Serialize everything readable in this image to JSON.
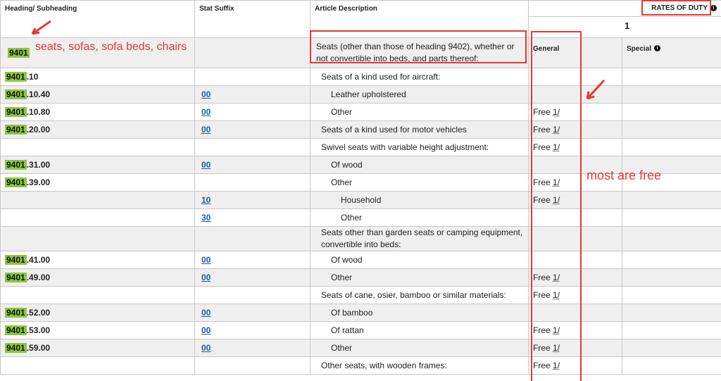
{
  "header": {
    "heading": "Heading/ Subheading",
    "stat_suffix": "Stat Suffix",
    "description": "Article Description",
    "rates_title": "RATES OF DUTY",
    "column": "1",
    "general": "General",
    "special": "Special"
  },
  "annotations": {
    "heading_note": "seats, sofas, sofa beds, chairs",
    "general_note": "most are free"
  },
  "rows": [
    {
      "code": "9401",
      "description": "Seats (other than those of heading 9402), whether or not convertible into beds, and parts thereof:"
    },
    {
      "code": "9401",
      "rest": ".10",
      "description": "Seats of a kind used for aircraft:"
    },
    {
      "code": "9401",
      "rest": ".10.40",
      "suffix": "00",
      "description": "Leather upholstered"
    },
    {
      "code": "9401",
      "rest": ".10.80",
      "suffix": "00",
      "description": "Other",
      "general": "Free",
      "footnote": "1/"
    },
    {
      "code": "9401",
      "rest": ".20.00",
      "suffix": "00",
      "description": "Seats of a kind used for motor vehicles",
      "general": "Free",
      "footnote": "1/"
    },
    {
      "description": "Swivel seats with variable height adjustment:",
      "general": "Free",
      "footnote": "1/"
    },
    {
      "code": "9401",
      "rest": ".31.00",
      "suffix": "00",
      "description": "Of wood"
    },
    {
      "code": "9401",
      "rest": ".39.00",
      "description": "Other",
      "general": "Free",
      "footnote": "1/"
    },
    {
      "suffix": "10",
      "description": "Household",
      "general": "Free",
      "footnote": "1/"
    },
    {
      "suffix": "30",
      "description": "Other"
    },
    {
      "description": "Seats other than garden seats or camping equipment, convertible into beds:"
    },
    {
      "code": "9401",
      "rest": ".41.00",
      "suffix": "00",
      "description": "Of wood"
    },
    {
      "code": "9401",
      "rest": ".49.00",
      "suffix": "00",
      "description": "Other",
      "general": "Free",
      "footnote": "1/"
    },
    {
      "description": "Seats of cane, osier, bamboo or similar materials:",
      "general": "Free",
      "footnote": "1/"
    },
    {
      "code": "9401",
      "rest": ".52.00",
      "suffix": "00",
      "description": "Of bamboo"
    },
    {
      "code": "9401",
      "rest": ".53.00",
      "suffix": "00",
      "description": "Of rattan",
      "general": "Free",
      "footnote": "1/"
    },
    {
      "code": "9401",
      "rest": ".59.00",
      "suffix": "00",
      "description": "Other",
      "general": "Free",
      "footnote": "1/"
    },
    {
      "description": "Other seats, with wooden frames:",
      "general": "Free",
      "footnote": "1/"
    }
  ]
}
